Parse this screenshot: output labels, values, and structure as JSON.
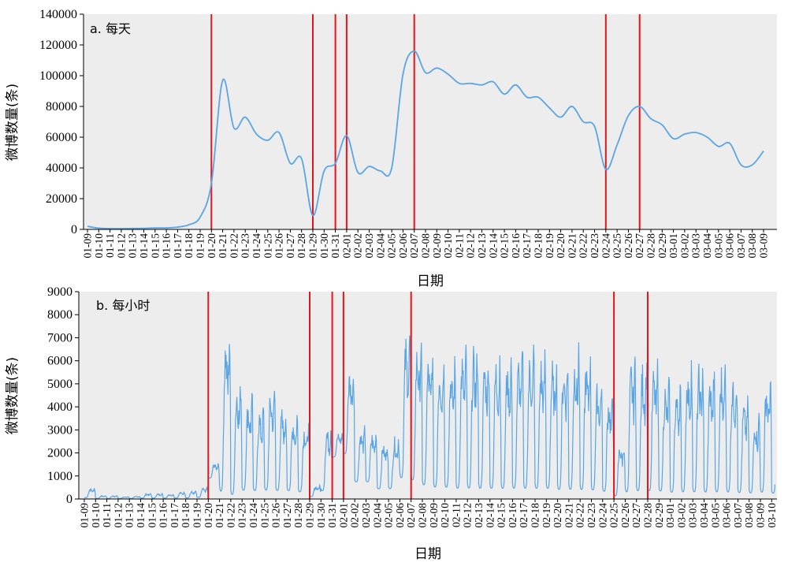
{
  "chart_data": [
    {
      "type": "line",
      "panel_label": "a. 每天",
      "xlabel": "日期",
      "ylabel": "微博数量(条)",
      "ylim": [
        0,
        140000
      ],
      "yticks": [
        0,
        20000,
        40000,
        60000,
        80000,
        100000,
        120000,
        140000
      ],
      "x_ticks": [
        "01-09",
        "01-10",
        "01-11",
        "01-12",
        "01-13",
        "01-14",
        "01-15",
        "01-16",
        "01-17",
        "01-18",
        "01-19",
        "01-20",
        "01-21",
        "01-22",
        "01-23",
        "01-24",
        "01-25",
        "01-26",
        "01-27",
        "01-28",
        "01-29",
        "01-30",
        "01-31",
        "02-01",
        "02-02",
        "02-03",
        "02-04",
        "02-05",
        "02-06",
        "02-07",
        "02-08",
        "02-09",
        "02-10",
        "02-11",
        "02-12",
        "02-13",
        "02-14",
        "02-15",
        "02-16",
        "02-17",
        "02-18",
        "02-19",
        "02-20",
        "02-21",
        "02-22",
        "02-23",
        "02-24",
        "02-25",
        "02-26",
        "02-27",
        "02-28",
        "02-29",
        "03-01",
        "03-02",
        "03-03",
        "03-04",
        "03-05",
        "03-06",
        "03-07",
        "03-08",
        "03-09"
      ],
      "series": [
        {
          "color": "#5aa5e6",
          "x": [
            "01-09",
            "01-10",
            "01-11",
            "01-12",
            "01-13",
            "01-14",
            "01-15",
            "01-16",
            "01-17",
            "01-18",
            "01-19",
            "01-20",
            "01-21",
            "01-22",
            "01-23",
            "01-24",
            "01-25",
            "01-26",
            "01-27",
            "01-28",
            "01-29",
            "01-30",
            "01-31",
            "02-01",
            "02-02",
            "02-03",
            "02-04",
            "02-05",
            "02-06",
            "02-07",
            "02-08",
            "02-09",
            "02-10",
            "02-11",
            "02-12",
            "02-13",
            "02-14",
            "02-15",
            "02-16",
            "02-17",
            "02-18",
            "02-19",
            "02-20",
            "02-21",
            "02-22",
            "02-23",
            "02-24",
            "02-25",
            "02-26",
            "02-27",
            "02-28",
            "02-29",
            "03-01",
            "03-02",
            "03-03",
            "03-04",
            "03-05",
            "03-06",
            "03-07",
            "03-08",
            "03-09"
          ],
          "values": [
            2000,
            800,
            500,
            500,
            600,
            700,
            900,
            1000,
            1500,
            3000,
            8000,
            30000,
            97000,
            66000,
            73000,
            62000,
            58000,
            63000,
            43000,
            46000,
            9000,
            38000,
            43000,
            61000,
            37000,
            41000,
            38000,
            40000,
            101000,
            116000,
            102000,
            105000,
            101000,
            95000,
            95000,
            94000,
            96000,
            88000,
            94000,
            86000,
            86000,
            79000,
            73000,
            80000,
            70000,
            67000,
            39000,
            55000,
            74000,
            80000,
            72000,
            68000,
            59000,
            62000,
            63000,
            60000,
            54000,
            56000,
            42000,
            42000,
            51000
          ]
        }
      ],
      "vlines": [
        "01-20",
        "01-29",
        "01-31",
        "02-01",
        "02-07",
        "02-24",
        "02-27"
      ],
      "vline_color": "#e8141c",
      "grid": false,
      "background": "#ededed"
    },
    {
      "type": "line",
      "panel_label": "b. 每小时",
      "xlabel": "日期",
      "ylabel": "微博数量(条)",
      "ylim": [
        0,
        9000
      ],
      "yticks": [
        0,
        1000,
        2000,
        3000,
        4000,
        5000,
        6000,
        7000,
        8000,
        9000
      ],
      "x_ticks": [
        "01-09",
        "01-10",
        "01-11",
        "01-12",
        "01-13",
        "01-14",
        "01-15",
        "01-16",
        "01-17",
        "01-18",
        "01-19",
        "01-20",
        "01-21",
        "01-22",
        "01-23",
        "01-24",
        "01-25",
        "01-26",
        "01-27",
        "01-28",
        "01-29",
        "01-30",
        "01-31",
        "02-01",
        "02-02",
        "02-03",
        "02-04",
        "02-05",
        "02-06",
        "02-07",
        "02-08",
        "02-09",
        "02-10",
        "02-11",
        "02-12",
        "02-13",
        "02-14",
        "02-15",
        "02-16",
        "02-17",
        "02-18",
        "02-19",
        "02-20",
        "02-21",
        "02-22",
        "02-23",
        "02-24",
        "02-25",
        "02-26",
        "02-27",
        "02-28",
        "02-29",
        "03-01",
        "03-02",
        "03-03",
        "03-04",
        "03-05",
        "03-06",
        "03-07",
        "03-08",
        "03-09",
        "03-10"
      ],
      "series": [
        {
          "color": "#5aa5e6",
          "hourly_pattern": "daily cycle: overnight trough, daytime peak",
          "daily_peak": [
            500,
            150,
            150,
            100,
            120,
            250,
            250,
            220,
            320,
            350,
            500,
            1600,
            7700,
            5400,
            4600,
            4100,
            5000,
            4100,
            3800,
            3500,
            600,
            3400,
            2900,
            5800,
            3200,
            3000,
            2600,
            2800,
            7400,
            7200,
            6600,
            6500,
            6200,
            6700,
            6900,
            6600,
            6500,
            6300,
            6500,
            6700,
            6500,
            6300,
            6400,
            6800,
            6500,
            5400,
            4800,
            2600,
            6300,
            6200,
            6100,
            5300,
            5200,
            6100,
            6100,
            5700,
            6100,
            5800,
            4500,
            3800,
            5500,
            3200
          ],
          "daily_trough": [
            50,
            20,
            20,
            20,
            20,
            30,
            30,
            30,
            30,
            40,
            60,
            900,
            200,
            100,
            300,
            300,
            300,
            300,
            300,
            250,
            100,
            300,
            1800,
            1900,
            700,
            700,
            400,
            400,
            800,
            700,
            500,
            400,
            400,
            350,
            350,
            350,
            350,
            350,
            350,
            350,
            350,
            350,
            300,
            300,
            300,
            300,
            250,
            100,
            200,
            250,
            250,
            250,
            200,
            200,
            200,
            200,
            200,
            200,
            200,
            200,
            200,
            200
          ]
        }
      ],
      "vlines": [
        "01-20",
        "01-29",
        "01-31",
        "02-01",
        "02-07",
        "02-25",
        "02-28"
      ],
      "vline_color": "#e8141c",
      "grid": false,
      "background": "#ededed"
    }
  ]
}
